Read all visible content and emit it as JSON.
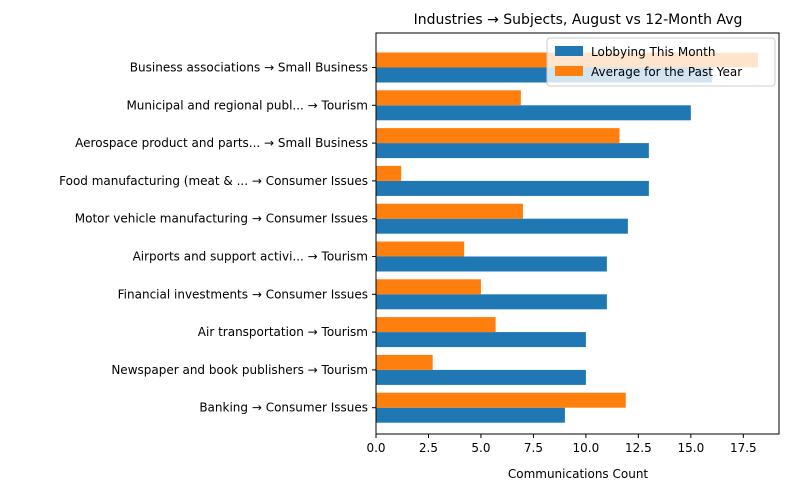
{
  "chart_data": {
    "type": "bar",
    "orientation": "horizontal",
    "title": "Industries → Subjects, August vs 12-Month Avg",
    "xlabel": "Communications Count",
    "ylabel": "",
    "xlim": [
      0,
      19.2
    ],
    "xticks": [
      "0.0",
      "2.5",
      "5.0",
      "7.5",
      "10.0",
      "12.5",
      "15.0",
      "17.5"
    ],
    "xtick_values": [
      0,
      2.5,
      5,
      7.5,
      10,
      12.5,
      15,
      17.5
    ],
    "grid": false,
    "legend_position": "top-right",
    "categories": [
      "Business associations → Small Business",
      "Municipal and regional publ... → Tourism",
      "Aerospace product and parts... → Small Business",
      "Food manufacturing (meat & ... → Consumer Issues",
      "Motor vehicle manufacturing → Consumer Issues",
      "Airports and support activi... → Tourism",
      "Financial investments → Consumer Issues",
      "Air transportation → Tourism",
      "Newspaper and book publishers → Tourism",
      "Banking → Consumer Issues"
    ],
    "series": [
      {
        "name": "Lobbying This Month",
        "color": "#1f77b4",
        "values": [
          16,
          15,
          13,
          13,
          12,
          11,
          11,
          10,
          10,
          9
        ]
      },
      {
        "name": "Average for the Past Year",
        "color": "#ff7f0e",
        "values": [
          18.2,
          6.9,
          11.6,
          1.2,
          7.0,
          4.2,
          5.0,
          5.7,
          2.7,
          11.9
        ]
      }
    ]
  }
}
